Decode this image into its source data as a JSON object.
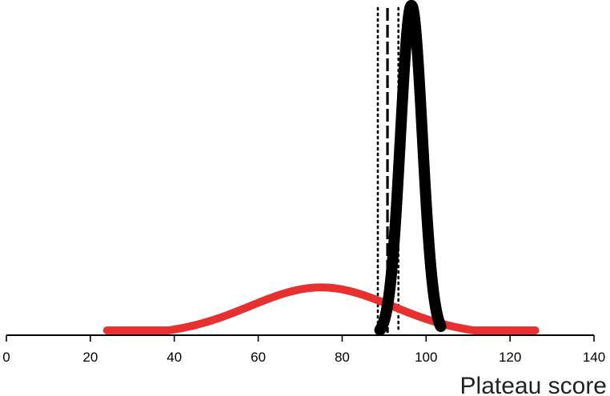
{
  "chart_data": {
    "type": "line",
    "xlabel": "Plateau score",
    "ylabel": "",
    "xlim": [
      0,
      140
    ],
    "xticks": [
      0,
      20,
      40,
      60,
      80,
      100,
      120,
      140
    ],
    "x_tick_labels": [
      "0",
      "20",
      "40",
      "60",
      "80",
      "100",
      "120",
      "140"
    ],
    "grid": false,
    "colors": {
      "prior": "#e83030",
      "posterior": "#000000",
      "reference": "#000000"
    },
    "series": [
      {
        "mean": 75,
        "sd": 17,
        "x_range": [
          24,
          126
        ],
        "peak_relative_height": 0.145,
        "style": "dots",
        "color": "#e83030"
      },
      {
        "mean": 96.5,
        "sd": 2.6,
        "x_range": [
          89,
          103.5
        ],
        "peak_relative_height": 1.0,
        "style": "dots-thick",
        "color": "#000000"
      }
    ],
    "reference_lines": [
      {
        "x": 88.5,
        "style": "dotted"
      },
      {
        "x": 90.8,
        "style": "dashed"
      },
      {
        "x": 93.4,
        "style": "dotted"
      }
    ]
  }
}
